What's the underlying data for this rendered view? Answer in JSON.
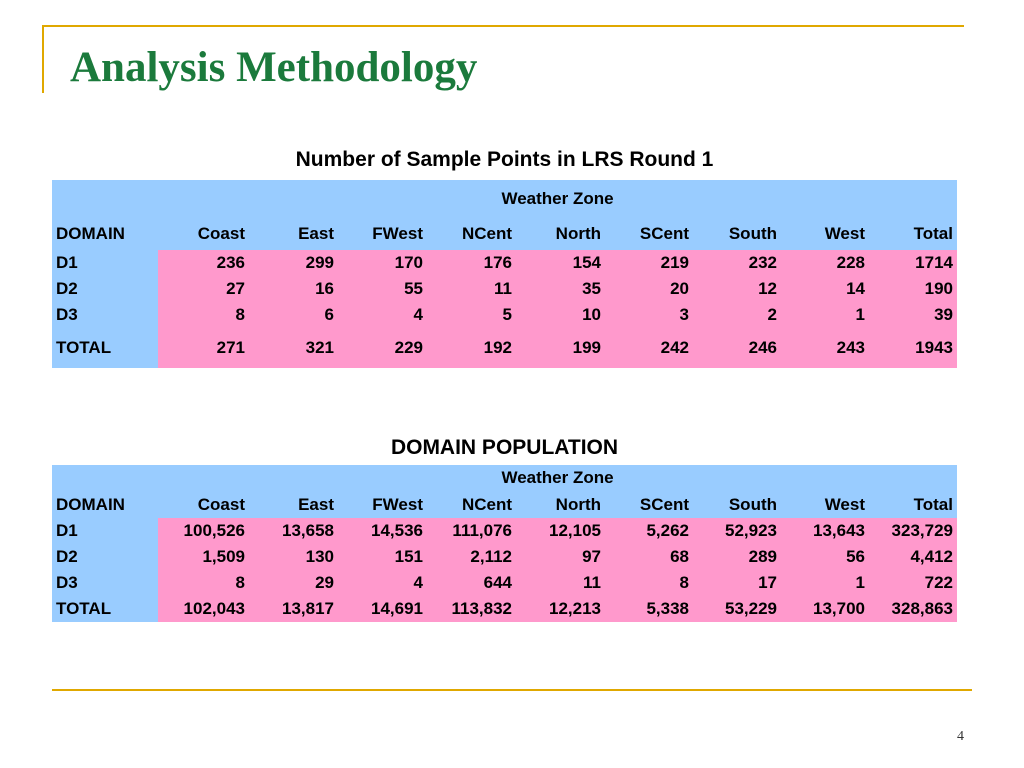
{
  "slide": {
    "title": "Analysis Methodology",
    "page_number": "4",
    "colors": {
      "accent_rule": "#e0a800",
      "title": "#1b7a3c",
      "header_fill": "#99ccff",
      "data_fill": "#ff99cc"
    }
  },
  "tables": {
    "sample_points": {
      "caption": "Number of Sample Points in LRS Round 1",
      "zone_header": "Weather Zone",
      "columns": [
        "DOMAIN",
        "Coast",
        "East",
        "FWest",
        "NCent",
        "North",
        "SCent",
        "South",
        "West",
        "Total"
      ],
      "rows": [
        [
          "D1",
          "236",
          "299",
          "170",
          "176",
          "154",
          "219",
          "232",
          "228",
          "1714"
        ],
        [
          "D2",
          "27",
          "16",
          "55",
          "11",
          "35",
          "20",
          "12",
          "14",
          "190"
        ],
        [
          "D3",
          "8",
          "6",
          "4",
          "5",
          "10",
          "3",
          "2",
          "1",
          "39"
        ],
        [
          "TOTAL",
          "271",
          "321",
          "229",
          "192",
          "199",
          "242",
          "246",
          "243",
          "1943"
        ]
      ]
    },
    "domain_population": {
      "caption": "DOMAIN POPULATION",
      "zone_header": "Weather Zone",
      "columns": [
        "DOMAIN",
        "Coast",
        "East",
        "FWest",
        "NCent",
        "North",
        "SCent",
        "South",
        "West",
        "Total"
      ],
      "rows": [
        [
          "D1",
          "100,526",
          "13,658",
          "14,536",
          "111,076",
          "12,105",
          "5,262",
          "52,923",
          "13,643",
          "323,729"
        ],
        [
          "D2",
          "1,509",
          "130",
          "151",
          "2,112",
          "97",
          "68",
          "289",
          "56",
          "4,412"
        ],
        [
          "D3",
          "8",
          "29",
          "4",
          "644",
          "11",
          "8",
          "17",
          "1",
          "722"
        ],
        [
          "TOTAL",
          "102,043",
          "13,817",
          "14,691",
          "113,832",
          "12,213",
          "5,338",
          "53,229",
          "13,700",
          "328,863"
        ]
      ]
    }
  }
}
